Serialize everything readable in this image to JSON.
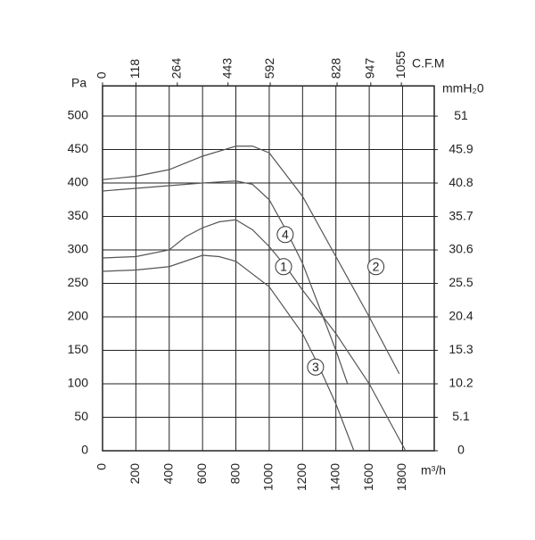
{
  "chart_data": {
    "type": "line",
    "x_label": "m³/h",
    "y_label": "Pa",
    "x2_label": "C.F.M",
    "y2_label": "mmH₂0",
    "xlim": [
      0,
      1990
    ],
    "xticks": [
      0,
      200,
      400,
      600,
      800,
      1000,
      1200,
      1400,
      1600,
      1800
    ],
    "ylim": [
      0,
      545
    ],
    "yticks": [
      0,
      50,
      100,
      150,
      200,
      250,
      300,
      350,
      400,
      450,
      500
    ],
    "x2lim": [
      0,
      1171
    ],
    "x2ticks": [
      0,
      118,
      264,
      443,
      592,
      828,
      947,
      1055
    ],
    "y2lim": [
      0,
      55.6
    ],
    "y2ticks": [
      0,
      5.1,
      10.2,
      15.3,
      20.4,
      25.5,
      30.6,
      35.7,
      40.8,
      45.9,
      51
    ],
    "grid": true,
    "series": [
      {
        "name": "1",
        "color": "#555555",
        "x": [
          0,
          200,
          400,
          500,
          600,
          700,
          800,
          900,
          1000,
          1100,
          1200,
          1400,
          1600,
          1818
        ],
        "values": [
          288,
          290,
          300,
          320,
          333,
          342,
          345,
          330,
          305,
          275,
          240,
          175,
          100,
          0
        ]
      },
      {
        "name": "2",
        "color": "#555555",
        "x": [
          0,
          200,
          400,
          600,
          800,
          900,
          1000,
          1200,
          1400,
          1600,
          1780
        ],
        "values": [
          405,
          410,
          420,
          440,
          455,
          455,
          445,
          380,
          290,
          200,
          115
        ]
      },
      {
        "name": "3",
        "color": "#555555",
        "x": [
          0,
          200,
          400,
          600,
          700,
          800,
          1000,
          1200,
          1300,
          1400,
          1508
        ],
        "values": [
          268,
          270,
          275,
          292,
          290,
          283,
          245,
          175,
          125,
          70,
          0
        ]
      },
      {
        "name": "4",
        "color": "#555555",
        "x": [
          0,
          200,
          400,
          600,
          800,
          900,
          1000,
          1100,
          1200,
          1400,
          1470
        ],
        "values": [
          388,
          392,
          396,
          400,
          403,
          398,
          375,
          330,
          280,
          150,
          100
        ]
      }
    ]
  }
}
